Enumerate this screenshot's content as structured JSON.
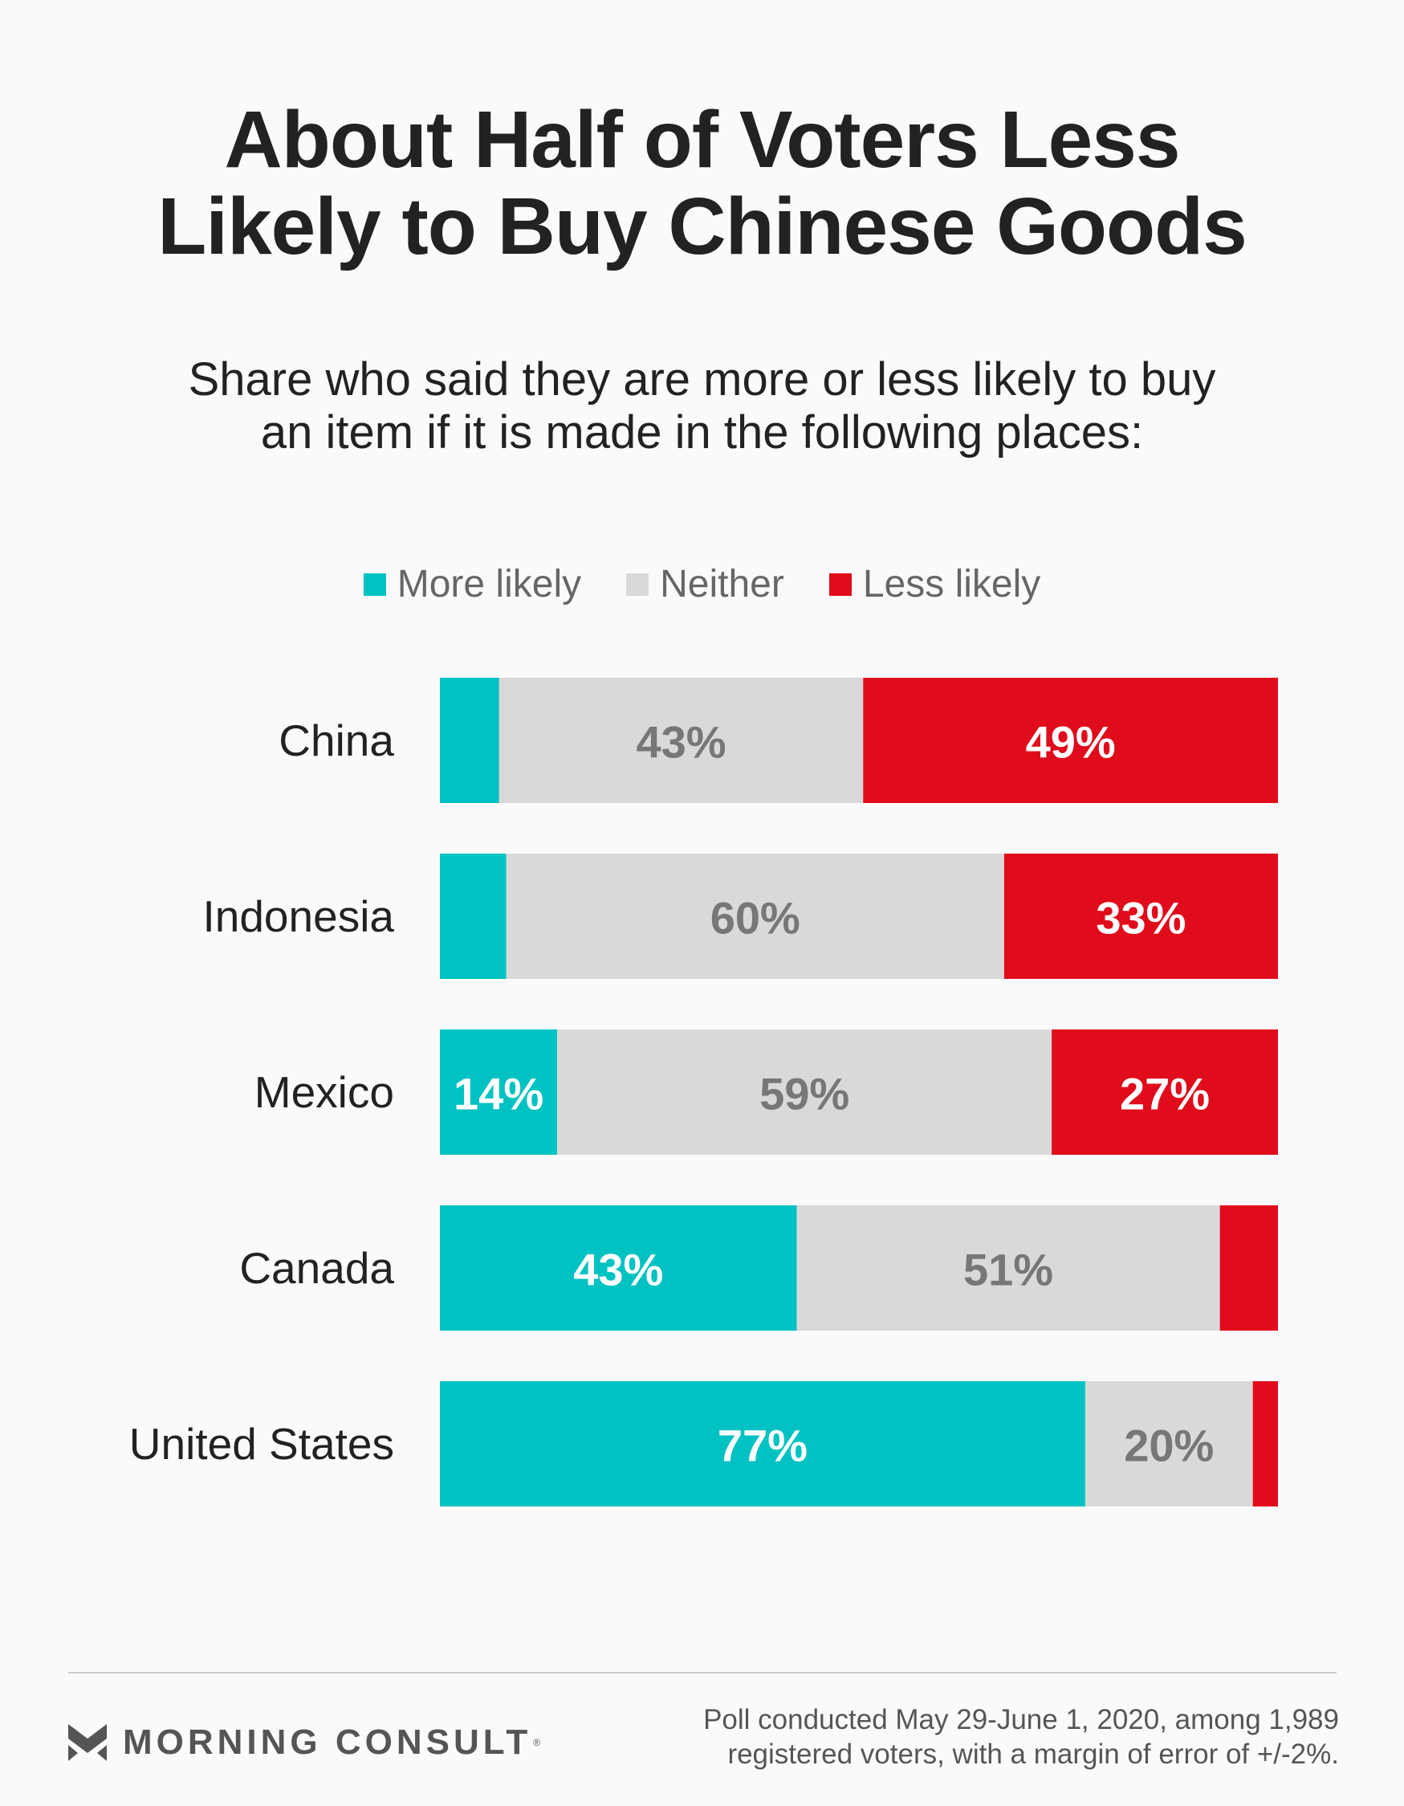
{
  "title": "About Half of Voters Less\nLikely to Buy Chinese Goods",
  "subtitle": "Share who said they are more or less likely to buy\nan item if it is made in the following places:",
  "legend": [
    {
      "label": "More likely",
      "color": "#00c2c2"
    },
    {
      "label": "Neither",
      "color": "#d9d9d9"
    },
    {
      "label": "Less likely",
      "color": "#e00b1b"
    }
  ],
  "chart_data": {
    "type": "bar",
    "orientation": "horizontal",
    "stacked": true,
    "categories": [
      "China",
      "Indonesia",
      "Mexico",
      "Canada",
      "United States"
    ],
    "series": [
      {
        "name": "More likely",
        "color": "#00c2c2",
        "values": [
          7,
          8,
          14,
          43,
          77
        ]
      },
      {
        "name": "Neither",
        "color": "#d9d9d9",
        "values": [
          43,
          60,
          59,
          51,
          20
        ]
      },
      {
        "name": "Less likely",
        "color": "#e00b1b",
        "values": [
          49,
          33,
          27,
          7,
          3
        ]
      }
    ],
    "data_labels": [
      [
        "",
        "43%",
        "49%"
      ],
      [
        "",
        "60%",
        "33%"
      ],
      [
        "14%",
        "59%",
        "27%"
      ],
      [
        "43%",
        "51%",
        ""
      ],
      [
        "77%",
        "20%",
        ""
      ]
    ],
    "label_colors": [
      "#ffffff",
      "#777777",
      "#ffffff"
    ],
    "legend_position": "top-center",
    "grid": false
  },
  "footer": {
    "brand": "MORNING CONSULT",
    "brand_mark": "®",
    "note": "Poll conducted May 29-June 1, 2020, among 1,989\nregistered voters, with a margin of error of +/-2%."
  }
}
